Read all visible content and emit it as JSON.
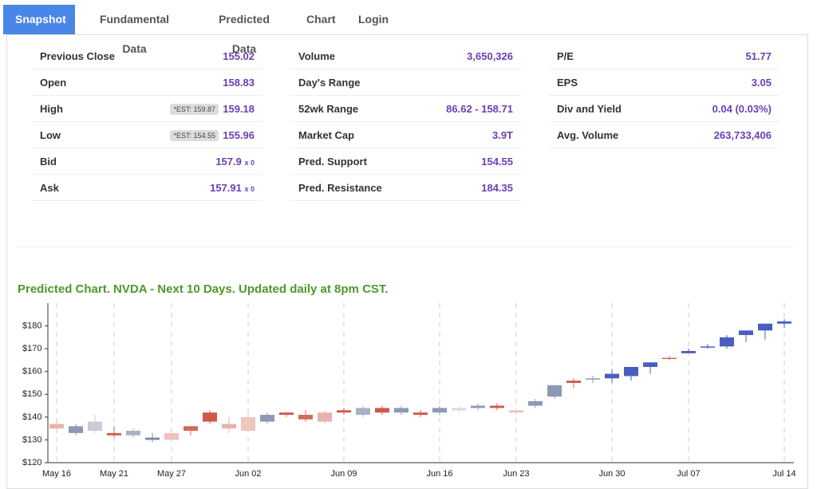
{
  "tabs": [
    "Snapshot",
    "Fundamental Data",
    "Predicted Data",
    "Chart",
    "Login"
  ],
  "stats": [
    [
      {
        "label": "Previous Close",
        "value": "155.02"
      },
      {
        "label": "Volume",
        "value": "3,650,326"
      },
      {
        "label": "P/E",
        "value": "51.77"
      }
    ],
    [
      {
        "label": "Open",
        "value": "158.83"
      },
      {
        "label": "Day's Range"
      },
      {
        "label": "EPS",
        "value": "3.05"
      }
    ],
    [
      {
        "label": "High",
        "value": "159.18",
        "note": "*EST: 159.87"
      },
      {
        "label": "52wk Range",
        "value": "86.62 - 158.71"
      },
      {
        "label": "Div and Yield",
        "value": "0.04 (0.03%)"
      }
    ],
    [
      {
        "label": "Low",
        "value": "155.96",
        "note": "*EST: 154.55"
      },
      {
        "label": "Market Cap",
        "value": "3.9T"
      },
      {
        "label": "Avg. Volume",
        "value": "263,733,406"
      }
    ],
    [
      {
        "label": "Bid",
        "value": "157.9",
        "size": "x 0"
      },
      {
        "label": "Pred. Support",
        "value": "154.55"
      }
    ],
    [
      {
        "label": "Ask",
        "value": "157.91",
        "size": "x 0"
      },
      {
        "label": "Pred. Resistance",
        "value": "184.35"
      }
    ]
  ],
  "chart_data": {
    "type": "candlestick",
    "title": "Predicted Chart. NVDA - Next 10 Days. Updated daily at 8pm CST.",
    "categories": [
      "May 16",
      null,
      null,
      "May 21",
      null,
      null,
      "May 27",
      null,
      null,
      null,
      "Jun 02",
      null,
      null,
      null,
      null,
      "Jun 09",
      null,
      null,
      null,
      null,
      "Jun 16",
      null,
      null,
      null,
      "Jun 23",
      null,
      null,
      null,
      null,
      "Jun 30",
      null,
      null,
      null,
      "Jul 07",
      null,
      null,
      null,
      null,
      "Jul 14"
    ],
    "open": [
      135,
      136,
      134,
      133,
      132,
      131,
      130,
      134,
      138,
      135,
      134,
      138,
      141,
      139,
      138,
      142,
      141,
      142,
      142,
      141,
      142,
      143,
      144,
      144,
      142,
      145,
      149,
      155,
      157,
      157,
      158,
      162,
      166,
      168,
      171,
      171,
      176,
      178,
      181
    ],
    "high": [
      139,
      137,
      141,
      136,
      135,
      133,
      134,
      136,
      143,
      140,
      143,
      142,
      142,
      143,
      143,
      144,
      145,
      145,
      145,
      143,
      145,
      145,
      146,
      146,
      144,
      148,
      154,
      157,
      158,
      161,
      162,
      164,
      167,
      170,
      172,
      176,
      178,
      181,
      183
    ],
    "low": [
      133,
      132,
      133,
      131,
      131,
      129,
      129,
      132,
      137,
      133,
      134,
      137,
      140,
      138,
      137,
      141,
      140,
      141,
      141,
      140,
      141,
      142,
      143,
      143,
      141,
      144,
      148,
      153,
      155,
      155,
      156,
      159,
      165,
      168,
      170,
      170,
      173,
      174,
      179
    ],
    "close": [
      137,
      133,
      138,
      132,
      134,
      130,
      133,
      136,
      142,
      137,
      140,
      141,
      142,
      141,
      142,
      143,
      144,
      144,
      144,
      142,
      144,
      144,
      145,
      145,
      143,
      147,
      154,
      156,
      157,
      159,
      162,
      164,
      166,
      169,
      171,
      175,
      178,
      181,
      182
    ],
    "colors": [
      "#e9b3ad",
      "#8d99b4",
      "#c9ccd8",
      "#cf5a4c",
      "#a9b1c6",
      "#7b88aa",
      "#eec2bd",
      "#d4685a",
      "#cf5a4c",
      "#e9b3ad",
      "#efc6c0",
      "#8d99b4",
      "#cf5a4c",
      "#d4685a",
      "#e9b3ad",
      "#cf5a4c",
      "#a9b1c6",
      "#cf5a4c",
      "#8d99b4",
      "#cf5a4c",
      "#8d99b4",
      "#d5d8e2",
      "#8d99b4",
      "#cf5a4c",
      "#eec2bd",
      "#8d99b4",
      "#8d99b4",
      "#cf5a4c",
      "#8d99b4",
      "#4a5ec0",
      "#4a5ec0",
      "#4a5ec0",
      "#d4685a",
      "#4a5ec0",
      "#4a5ec0",
      "#4a5ec0",
      "#4a5ec0",
      "#4a5ec0",
      "#4a5ec0"
    ],
    "ylim": [
      120,
      190
    ],
    "yticks": [
      {
        "value": 120,
        "label": "$120"
      },
      {
        "value": 130,
        "label": "$130"
      },
      {
        "value": 140,
        "label": "$140"
      },
      {
        "value": 150,
        "label": "$150"
      },
      {
        "value": 160,
        "label": "$160"
      },
      {
        "value": 170,
        "label": "$170"
      },
      {
        "value": 180,
        "label": "$180"
      }
    ]
  }
}
